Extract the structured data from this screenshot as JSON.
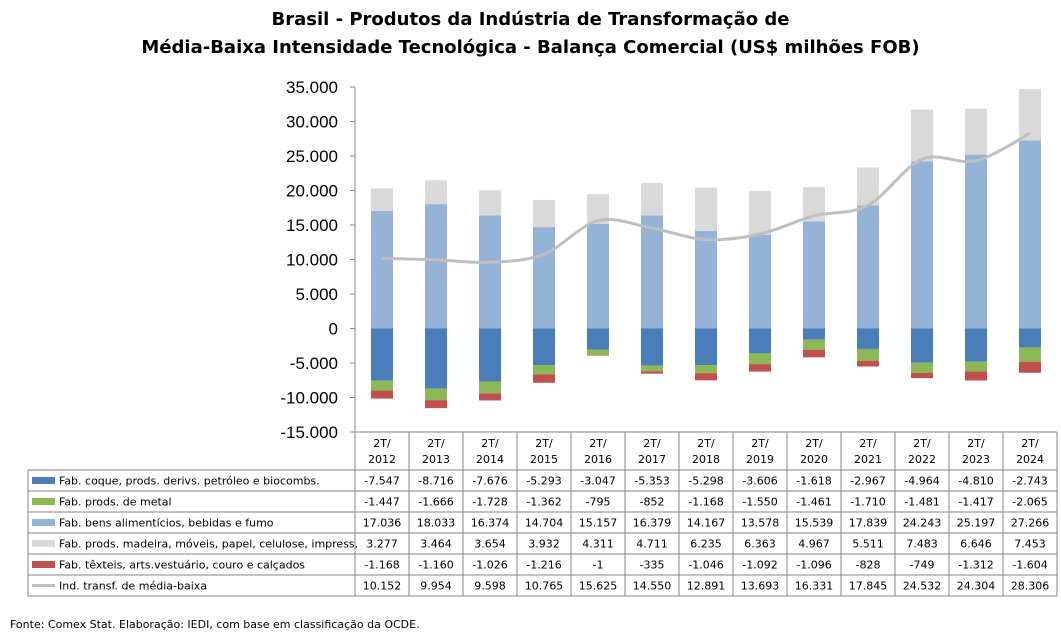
{
  "title": {
    "line1": "Brasil - Produtos da Indústria de Transformação de",
    "line2": "Média-Baixa Intensidade Tecnológica - Balança Comercial (US$ milhões FOB)"
  },
  "source": "Fonte:  Comex Stat. Elaboração: IEDI, com base em classificação da OCDE.",
  "chart_data": {
    "type": "bar",
    "stacked": true,
    "title": "Brasil - Produtos da Indústria de Transformação de Média-Baixa Intensidade Tecnológica - Balança Comercial (US$ milhões FOB)",
    "categories": [
      [
        "2T/",
        "2012"
      ],
      [
        "2T/",
        "2013"
      ],
      [
        "2T/",
        "2014"
      ],
      [
        "2T/",
        "2015"
      ],
      [
        "2T/",
        "2016"
      ],
      [
        "2T/",
        "2017"
      ],
      [
        "2T/",
        "2018"
      ],
      [
        "2T/",
        "2019"
      ],
      [
        "2T/",
        "2020"
      ],
      [
        "2T/",
        "2021"
      ],
      [
        "2T/",
        "2022"
      ],
      [
        "2T/",
        "2023"
      ],
      [
        "2T/",
        "2024"
      ]
    ],
    "ylim": [
      -15000,
      35000
    ],
    "yticks": [
      35000,
      30000,
      25000,
      20000,
      15000,
      10000,
      5000,
      0,
      -5000,
      -10000,
      -15000
    ],
    "ytick_labels": [
      "35.000",
      "30.000",
      "25.000",
      "20.000",
      "15.000",
      "10.000",
      "5.000",
      "0",
      "-5.000",
      "-10.000",
      "-15.000"
    ],
    "legend_placement": "data-table",
    "series": [
      {
        "name": "Fab. coque, prods. derivs. petróleo e biocombs.",
        "kind": "bar",
        "color": "#4a7ebb",
        "values": [
          -7547,
          -8716,
          -7676,
          -5293,
          -3047,
          -5353,
          -5298,
          -3606,
          -1618,
          -2967,
          -4964,
          -4810,
          -2743
        ],
        "labels": [
          "-7.547",
          "-8.716",
          "-7.676",
          "-5.293",
          "-3.047",
          "-5.353",
          "-5.298",
          "-3.606",
          "-1.618",
          "-2.967",
          "-4.964",
          "-4.810",
          "-2.743"
        ]
      },
      {
        "name": "Fab. prods. de metal",
        "kind": "bar",
        "color": "#8cb856",
        "values": [
          -1447,
          -1666,
          -1728,
          -1362,
          -795,
          -852,
          -1168,
          -1550,
          -1461,
          -1710,
          -1481,
          -1417,
          -2065
        ],
        "labels": [
          "-1.447",
          "-1.666",
          "-1.728",
          "-1.362",
          "-795",
          "-852",
          "-1.168",
          "-1.550",
          "-1.461",
          "-1.710",
          "-1.481",
          "-1.417",
          "-2.065"
        ]
      },
      {
        "name": "Fab. bens alimentícios, bebidas e fumo",
        "kind": "bar",
        "color": "#95b3d7",
        "values": [
          17036,
          18033,
          16374,
          14704,
          15157,
          16379,
          14167,
          13578,
          15539,
          17839,
          24243,
          25197,
          27266
        ],
        "labels": [
          "17.036",
          "18.033",
          "16.374",
          "14.704",
          "15.157",
          "16.379",
          "14.167",
          "13.578",
          "15.539",
          "17.839",
          "24.243",
          "25.197",
          "27.266"
        ]
      },
      {
        "name": "Fab. prods. madeira, móveis, papel, celulose, impress.",
        "kind": "bar",
        "color": "#d9d9d9",
        "values": [
          3277,
          3464,
          3654,
          3932,
          4311,
          4711,
          6235,
          6363,
          4967,
          5511,
          7483,
          6646,
          7453
        ],
        "labels": [
          "3.277",
          "3.464",
          "3.654",
          "3.932",
          "4.311",
          "4.711",
          "6.235",
          "6.363",
          "4.967",
          "5.511",
          "7.483",
          "6.646",
          "7.453"
        ]
      },
      {
        "name": "Fab. têxteis, arts.vestuário, couro e calçados",
        "kind": "bar",
        "color": "#c0504d",
        "values": [
          -1168,
          -1160,
          -1026,
          -1216,
          -1,
          -335,
          -1046,
          -1092,
          -1096,
          -828,
          -749,
          -1312,
          -1604
        ],
        "labels": [
          "-1.168",
          "-1.160",
          "-1.026",
          "-1.216",
          "-1",
          "-335",
          "-1.046",
          "-1.092",
          "-1.096",
          "-828",
          "-749",
          "-1.312",
          "-1.604"
        ]
      },
      {
        "name": "Ind. transf. de média-baixa",
        "kind": "line",
        "color": "#bfbfbf",
        "values": [
          10152,
          9954,
          9598,
          10765,
          15625,
          14550,
          12891,
          13693,
          16331,
          17845,
          24532,
          24304,
          28306
        ],
        "labels": [
          "10.152",
          "9.954",
          "9.598",
          "10.765",
          "15.625",
          "14.550",
          "12.891",
          "13.693",
          "16.331",
          "17.845",
          "24.532",
          "24.304",
          "28.306"
        ]
      }
    ]
  }
}
